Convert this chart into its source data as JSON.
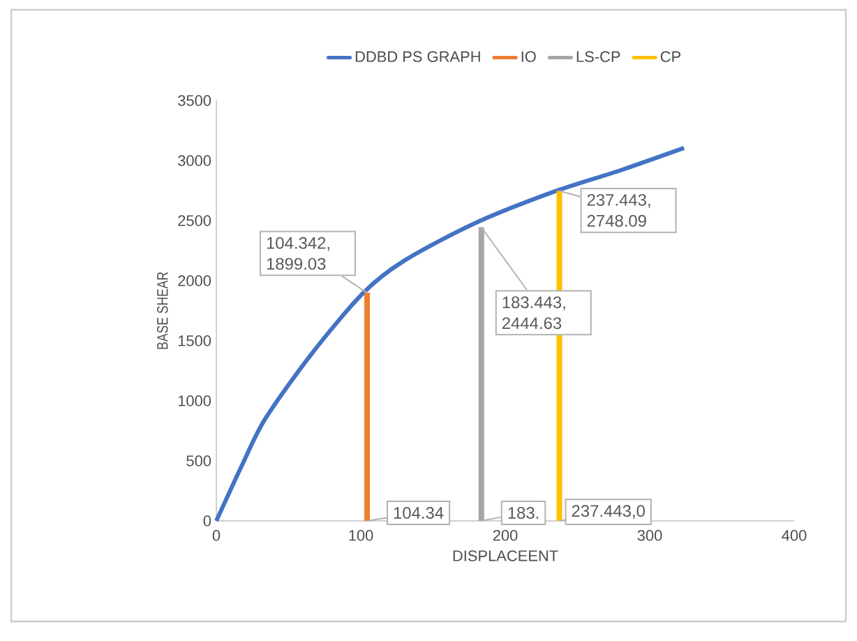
{
  "chart_data": {
    "type": "line",
    "xlabel": "DISPLACEENT",
    "ylabel": "BASE SHEAR",
    "xlim": [
      0,
      400
    ],
    "xticks": [
      0,
      100,
      200,
      300,
      400
    ],
    "ylim": [
      0,
      3500
    ],
    "yticks": [
      0,
      500,
      1000,
      1500,
      2000,
      2500,
      3000,
      3500
    ],
    "grid": false,
    "legend": "top",
    "marker": "none",
    "line_style": "solid",
    "series": [
      {
        "name": "DDBD PS GRAPH",
        "color": "#4472c4",
        "x": [
          0,
          17.7,
          33.8,
          66,
          101.4,
          130,
          178.7,
          233.5,
          280,
          323.7
        ],
        "values": [
          0,
          462,
          849,
          1392,
          1895,
          2166,
          2477,
          2740,
          2920,
          3105
        ]
      },
      {
        "name": "IO",
        "color": "#ed7d31",
        "x": [
          104.342,
          104.342
        ],
        "values": [
          0,
          1899.03
        ]
      },
      {
        "name": "LS-CP",
        "color": "#a5a5a5",
        "x": [
          183.443,
          183.443
        ],
        "values": [
          0,
          2444.63
        ]
      },
      {
        "name": "CP",
        "color": "#ffc000",
        "x": [
          237.443,
          237.443
        ],
        "values": [
          0,
          2748.09
        ]
      }
    ],
    "annotations": [
      {
        "text": "104.342, 1899.03",
        "x": 104.342,
        "y": 1899.03
      },
      {
        "text": "183.443, 2444.63",
        "x": 183.443,
        "y": 2444.63
      },
      {
        "text": "237.443, 2748.09",
        "x": 237.443,
        "y": 2748.09
      },
      {
        "text": "104.34",
        "x": 104.342,
        "y": 0
      },
      {
        "text": "183.",
        "x": 183.443,
        "y": 0
      },
      {
        "text": "237.443,0",
        "x": 237.443,
        "y": 0
      }
    ]
  }
}
